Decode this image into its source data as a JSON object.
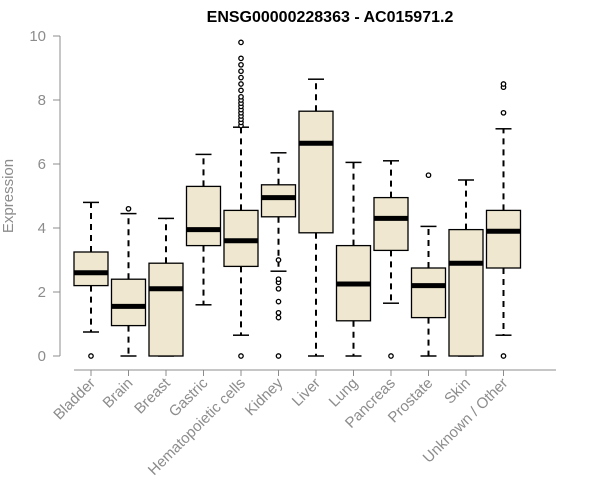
{
  "chart_data": {
    "type": "boxplot",
    "title": "ENSG00000228363 - AC015971.2",
    "xlabel": "",
    "ylabel": "Expression",
    "ylim": [
      0,
      10
    ],
    "yticks": [
      0,
      2,
      4,
      6,
      8,
      10
    ],
    "box_fill": "#efe7cf",
    "box_stroke": "#000000",
    "axis_color": "#8c8c8c",
    "categories": [
      "Bladder",
      "Brain",
      "Breast",
      "Gastric",
      "Hematopoietic cells",
      "Kidney",
      "Liver",
      "Lung",
      "Pancreas",
      "Prostate",
      "Skin",
      "Unknown / Other"
    ],
    "boxes": [
      {
        "name": "Bladder",
        "whisker_low": 0.75,
        "q1": 2.2,
        "median": 2.6,
        "q3": 3.25,
        "whisker_high": 4.8,
        "outliers": [
          0
        ]
      },
      {
        "name": "Brain",
        "whisker_low": 0,
        "q1": 0.95,
        "median": 1.55,
        "q3": 2.4,
        "whisker_high": 4.45,
        "outliers": [
          4.6
        ]
      },
      {
        "name": "Breast",
        "whisker_low": 0,
        "q1": 0,
        "median": 2.1,
        "q3": 2.9,
        "whisker_high": 4.3,
        "outliers": []
      },
      {
        "name": "Gastric",
        "whisker_low": 1.6,
        "q1": 3.45,
        "median": 3.95,
        "q3": 5.3,
        "whisker_high": 6.3,
        "outliers": []
      },
      {
        "name": "Hematopoietic cells",
        "whisker_low": 0.65,
        "q1": 2.8,
        "median": 3.6,
        "q3": 4.55,
        "whisker_high": 7.15,
        "outliers": [
          0,
          7.2,
          7.3,
          7.4,
          7.5,
          7.6,
          7.7,
          7.8,
          7.9,
          8.0,
          8.1,
          8.3,
          8.5,
          8.7,
          8.9,
          9.1,
          9.3,
          9.8
        ]
      },
      {
        "name": "Kidney",
        "whisker_low": 2.65,
        "q1": 4.35,
        "median": 4.95,
        "q3": 5.35,
        "whisker_high": 6.35,
        "outliers": [
          0,
          1.2,
          1.35,
          1.7,
          2.1,
          2.3,
          2.4,
          3.0
        ]
      },
      {
        "name": "Liver",
        "whisker_low": 0,
        "q1": 3.85,
        "median": 6.65,
        "q3": 7.65,
        "whisker_high": 8.65,
        "outliers": []
      },
      {
        "name": "Lung",
        "whisker_low": 0,
        "q1": 1.1,
        "median": 2.25,
        "q3": 3.45,
        "whisker_high": 6.05,
        "outliers": []
      },
      {
        "name": "Pancreas",
        "whisker_low": 1.65,
        "q1": 3.3,
        "median": 4.3,
        "q3": 4.95,
        "whisker_high": 6.1,
        "outliers": [
          0
        ]
      },
      {
        "name": "Prostate",
        "whisker_low": 0,
        "q1": 1.2,
        "median": 2.2,
        "q3": 2.75,
        "whisker_high": 4.05,
        "outliers": [
          5.65
        ]
      },
      {
        "name": "Skin",
        "whisker_low": 0,
        "q1": 0,
        "median": 2.9,
        "q3": 3.95,
        "whisker_high": 5.5,
        "outliers": []
      },
      {
        "name": "Unknown / Other",
        "whisker_low": 0.65,
        "q1": 2.75,
        "median": 3.9,
        "q3": 4.55,
        "whisker_high": 7.1,
        "outliers": [
          0,
          7.6,
          8.4,
          8.5
        ]
      }
    ]
  }
}
